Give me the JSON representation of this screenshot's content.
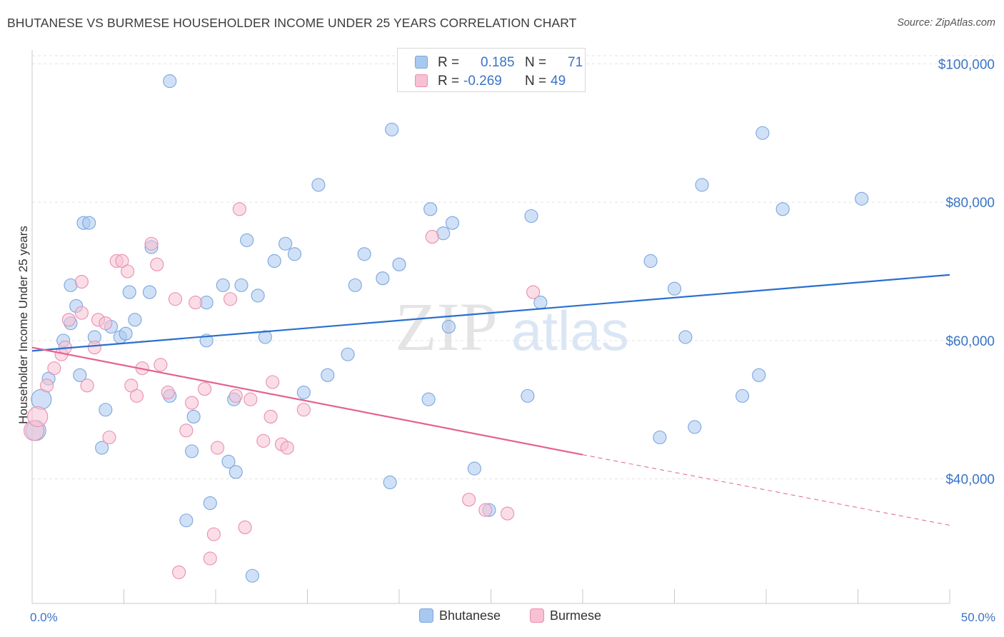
{
  "title": "BHUTANESE VS BURMESE HOUSEHOLDER INCOME UNDER 25 YEARS CORRELATION CHART",
  "source": "Source: ZipAtlas.com",
  "watermark": {
    "part1": "ZIP",
    "part2": "atlas"
  },
  "legend": {
    "rows": [
      {
        "r_label": "R =",
        "r_value": "0.185",
        "n_label": "N =",
        "n_value": "71",
        "color": "#a9c8f0",
        "border": "#7aa6de"
      },
      {
        "r_label": "R =",
        "r_value": "-0.269",
        "n_label": "N =",
        "n_value": "49",
        "color": "#f7c1d3",
        "border": "#e88fae"
      }
    ]
  },
  "bottom_legend": {
    "series1": "Bhutanese",
    "series2": "Burmese"
  },
  "chart_data": {
    "type": "scatter",
    "title": "BHUTANESE VS BURMESE HOUSEHOLDER INCOME UNDER 25 YEARS CORRELATION CHART",
    "xlabel": "",
    "ylabel": "Householder Income Under 25 years",
    "xlim": [
      0,
      50
    ],
    "ylim": [
      22000,
      102000
    ],
    "x_tick_labels": [
      "0.0%",
      "50.0%"
    ],
    "y_ticks": [
      40000,
      60000,
      80000,
      100000
    ],
    "y_tick_labels": [
      "$40,000",
      "$60,000",
      "$80,000",
      "$100,000"
    ],
    "grid": true,
    "legend_position": "top-center",
    "colors": {
      "Bhutanese": "#6f9fdc",
      "Burmese": "#ec8fb0",
      "blue_line": "#2a6fcf",
      "pink_line": "#e5628f"
    },
    "series": [
      {
        "name": "Bhutanese",
        "points": [
          [
            0.2,
            47000
          ],
          [
            0.5,
            51500
          ],
          [
            0.9,
            54500
          ],
          [
            1.7,
            60000
          ],
          [
            2.1,
            62500
          ],
          [
            2.1,
            68000
          ],
          [
            2.4,
            65000
          ],
          [
            2.6,
            55000
          ],
          [
            2.8,
            77000
          ],
          [
            3.1,
            77000
          ],
          [
            3.4,
            60500
          ],
          [
            3.8,
            44500
          ],
          [
            4.0,
            50000
          ],
          [
            4.3,
            62000
          ],
          [
            4.8,
            60500
          ],
          [
            5.1,
            61000
          ],
          [
            5.3,
            67000
          ],
          [
            5.6,
            63000
          ],
          [
            6.4,
            67000
          ],
          [
            6.5,
            73500
          ],
          [
            7.5,
            97500
          ],
          [
            7.5,
            52000
          ],
          [
            8.4,
            34000
          ],
          [
            8.7,
            44000
          ],
          [
            8.8,
            49000
          ],
          [
            9.5,
            60000
          ],
          [
            9.5,
            65500
          ],
          [
            9.7,
            36500
          ],
          [
            10.4,
            68000
          ],
          [
            10.7,
            42500
          ],
          [
            11.0,
            51500
          ],
          [
            11.1,
            41000
          ],
          [
            11.4,
            68000
          ],
          [
            11.7,
            74500
          ],
          [
            12.0,
            26000
          ],
          [
            12.3,
            66500
          ],
          [
            12.7,
            60500
          ],
          [
            13.2,
            71500
          ],
          [
            13.8,
            74000
          ],
          [
            14.3,
            72500
          ],
          [
            14.8,
            52500
          ],
          [
            15.6,
            82500
          ],
          [
            16.1,
            55000
          ],
          [
            17.2,
            58000
          ],
          [
            17.6,
            68000
          ],
          [
            18.1,
            72500
          ],
          [
            19.1,
            69000
          ],
          [
            19.5,
            39500
          ],
          [
            19.6,
            90500
          ],
          [
            20.0,
            71000
          ],
          [
            21.6,
            51500
          ],
          [
            21.7,
            79000
          ],
          [
            22.4,
            75500
          ],
          [
            22.7,
            62000
          ],
          [
            22.9,
            77000
          ],
          [
            24.1,
            41500
          ],
          [
            24.9,
            35500
          ],
          [
            27.0,
            52000
          ],
          [
            27.2,
            78000
          ],
          [
            27.7,
            65500
          ],
          [
            33.7,
            71500
          ],
          [
            34.2,
            46000
          ],
          [
            35.0,
            67500
          ],
          [
            35.6,
            60500
          ],
          [
            36.1,
            47500
          ],
          [
            36.5,
            82500
          ],
          [
            38.7,
            52000
          ],
          [
            39.6,
            55000
          ],
          [
            39.8,
            90000
          ],
          [
            40.9,
            79000
          ],
          [
            45.2,
            80500
          ]
        ]
      },
      {
        "name": "Burmese",
        "points": [
          [
            0.1,
            47000
          ],
          [
            0.3,
            49000
          ],
          [
            0.8,
            53500
          ],
          [
            1.2,
            56000
          ],
          [
            1.6,
            58000
          ],
          [
            1.8,
            59000
          ],
          [
            2.0,
            63000
          ],
          [
            2.7,
            64000
          ],
          [
            2.7,
            68500
          ],
          [
            3.0,
            53500
          ],
          [
            3.4,
            59000
          ],
          [
            3.6,
            63000
          ],
          [
            4.0,
            62500
          ],
          [
            4.2,
            46000
          ],
          [
            4.6,
            71500
          ],
          [
            4.9,
            71500
          ],
          [
            5.2,
            70000
          ],
          [
            5.4,
            53500
          ],
          [
            5.7,
            52000
          ],
          [
            6.0,
            56000
          ],
          [
            6.5,
            74000
          ],
          [
            6.8,
            71000
          ],
          [
            7.0,
            56500
          ],
          [
            7.4,
            52500
          ],
          [
            7.8,
            66000
          ],
          [
            8.0,
            26500
          ],
          [
            8.4,
            47000
          ],
          [
            8.7,
            51000
          ],
          [
            8.9,
            65500
          ],
          [
            9.4,
            53000
          ],
          [
            9.7,
            28500
          ],
          [
            9.9,
            32000
          ],
          [
            10.1,
            44500
          ],
          [
            10.8,
            66000
          ],
          [
            11.1,
            52000
          ],
          [
            11.3,
            79000
          ],
          [
            11.6,
            33000
          ],
          [
            11.9,
            51500
          ],
          [
            12.6,
            45500
          ],
          [
            13.0,
            49000
          ],
          [
            13.1,
            54000
          ],
          [
            13.6,
            45000
          ],
          [
            13.9,
            44500
          ],
          [
            14.8,
            50000
          ],
          [
            21.8,
            75000
          ],
          [
            23.8,
            37000
          ],
          [
            24.7,
            35500
          ],
          [
            25.9,
            35000
          ],
          [
            27.3,
            67000
          ]
        ]
      }
    ],
    "trend_lines": [
      {
        "series": "Bhutanese",
        "x0": 0,
        "y0": 58500,
        "x1": 50,
        "y1": 69500,
        "style": "solid"
      },
      {
        "series": "Burmese",
        "x0": 0,
        "y0": 59000,
        "x1": 30,
        "y1": 43500,
        "style": "solid"
      },
      {
        "series": "Burmese",
        "x0": 30,
        "y0": 43500,
        "x1": 50,
        "y1": 33300,
        "style": "dashed"
      }
    ]
  }
}
